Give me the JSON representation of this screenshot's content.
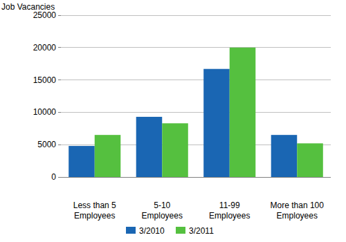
{
  "chart_data": {
    "type": "bar",
    "y_label": "Job Vacancies",
    "categories": [
      "Less than 5 Employees",
      "5-10 Employees",
      "11-99 Employees",
      "More than 100 Employees"
    ],
    "series": [
      {
        "name": "3/2010",
        "color": "#1a66b3",
        "values": [
          4800,
          9300,
          16700,
          6500
        ]
      },
      {
        "name": "3/2011",
        "color": "#55c03f",
        "values": [
          6500,
          8300,
          20000,
          5200
        ]
      }
    ],
    "ylim": [
      0,
      25000
    ],
    "yticks": [
      0,
      5000,
      10000,
      15000,
      20000,
      25000
    ],
    "grid": true,
    "legend": "bottom"
  }
}
